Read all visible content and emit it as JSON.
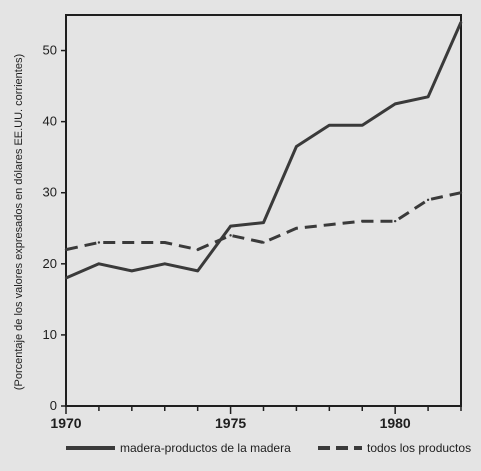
{
  "chart_data": {
    "type": "line",
    "title": "",
    "xlabel": "",
    "ylabel": "(Porcentaje de los valores expresados en dólares EE.UU. corrientes)",
    "xlim": [
      1970,
      1982
    ],
    "ylim": [
      0,
      55
    ],
    "x_ticks": [
      1970,
      1971,
      1972,
      1973,
      1974,
      1975,
      1976,
      1977,
      1978,
      1979,
      1980,
      1981,
      1982
    ],
    "x_tick_labels": [
      "1970",
      "1975",
      "1980"
    ],
    "y_ticks": [
      0,
      10,
      20,
      30,
      40,
      50
    ],
    "grid": false,
    "legend_position": "bottom",
    "x": [
      1970,
      1971,
      1972,
      1973,
      1974,
      1975,
      1976,
      1977,
      1978,
      1979,
      1980,
      1981,
      1982
    ],
    "series": [
      {
        "name": "madera-productos de la madera",
        "style": "solid",
        "color": "#3a3a3a",
        "values": [
          18.0,
          20.0,
          19.0,
          20.0,
          19.0,
          25.3,
          25.8,
          36.5,
          39.5,
          39.5,
          42.5,
          43.5,
          54.0
        ]
      },
      {
        "name": "todos los productos",
        "style": "dashed",
        "color": "#3a3a3a",
        "values": [
          22.0,
          23.0,
          23.0,
          23.0,
          22.0,
          24.0,
          23.0,
          25.0,
          25.5,
          26.0,
          26.0,
          29.0,
          30.0
        ]
      }
    ]
  }
}
